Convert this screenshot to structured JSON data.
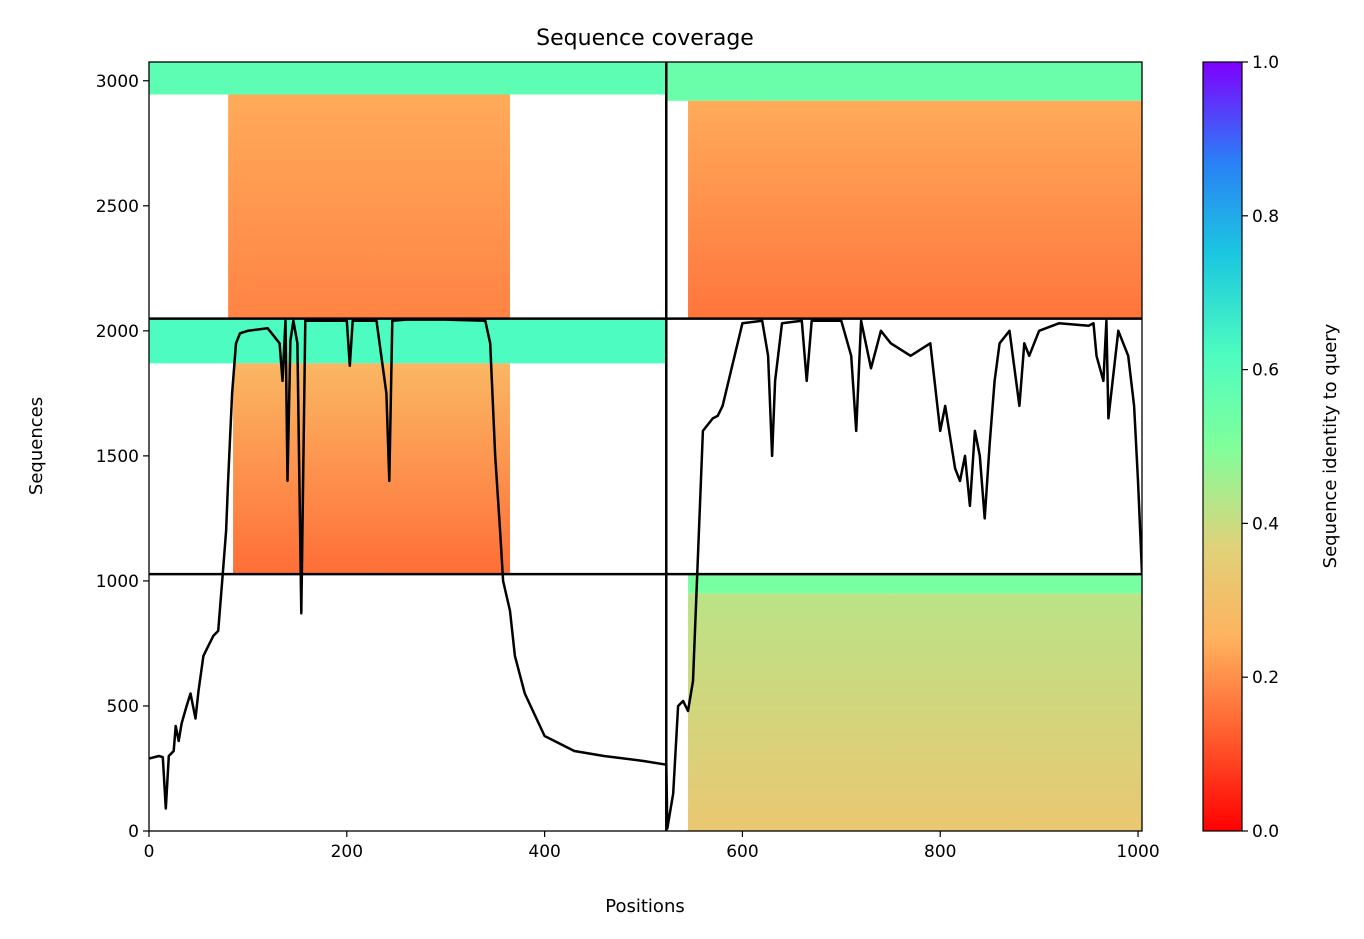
{
  "chart_data": {
    "type": "heatmap",
    "title": "Sequence coverage",
    "xlabel": "Positions",
    "ylabel": "Sequences",
    "xlim": [
      0,
      1004
    ],
    "ylim": [
      0,
      3075
    ],
    "xticks": [
      0,
      200,
      400,
      600,
      800,
      1000
    ],
    "yticks": [
      0,
      500,
      1000,
      1500,
      2000,
      2500,
      3000
    ],
    "colorbar": {
      "label": "Sequence identity to query",
      "range": [
        0.0,
        1.0
      ],
      "ticks": [
        "0.0",
        "0.2",
        "0.4",
        "0.6",
        "0.8",
        "1.0"
      ],
      "colormap": "rainbow_r"
    },
    "block_dividers": {
      "x": [
        523
      ],
      "y": [
        1027,
        2049
      ]
    },
    "blocks": [
      {
        "x": [
          0,
          523
        ],
        "y": [
          2049,
          3075
        ],
        "note": "top-left",
        "bands": [
          {
            "y": [
              2945,
              3075
            ],
            "x": [
              0,
              523
            ],
            "identity": 0.58
          },
          {
            "y": [
              2049,
              2945
            ],
            "x": [
              80,
              365
            ],
            "identity": [
              0.18,
              0.24
            ]
          }
        ]
      },
      {
        "x": [
          523,
          1004
        ],
        "y": [
          2049,
          3075
        ],
        "note": "top-right",
        "bands": [
          {
            "y": [
              2920,
              3075
            ],
            "x": [
              523,
              1004
            ],
            "identity": 0.55
          },
          {
            "y": [
              2049,
              2920
            ],
            "x": [
              545,
              1004
            ],
            "identity": [
              0.16,
              0.24
            ]
          }
        ]
      },
      {
        "x": [
          0,
          523
        ],
        "y": [
          1027,
          2049
        ],
        "note": "middle-left",
        "bands": [
          {
            "y": [
              1870,
              2049
            ],
            "x": [
              0,
              523
            ],
            "identity": 0.62
          },
          {
            "y": [
              1027,
              1870
            ],
            "x": [
              85,
              365
            ],
            "identity": [
              0.15,
              0.27
            ]
          }
        ]
      },
      {
        "x": [
          523,
          1004
        ],
        "y": [
          0,
          1027
        ],
        "note": "bottom-right",
        "bands": [
          {
            "y": [
              950,
              1027
            ],
            "x": [
              545,
              1004
            ],
            "identity": 0.52
          },
          {
            "y": [
              0,
              950
            ],
            "x": [
              545,
              1004
            ],
            "identity": [
              0.33,
              0.42
            ]
          }
        ]
      }
    ],
    "coverage_line": {
      "color": "#000000",
      "x": [
        0,
        10,
        14,
        17,
        20,
        25,
        27,
        30,
        33,
        38,
        42,
        47,
        50,
        55,
        60,
        65,
        70,
        75,
        78,
        80,
        84,
        88,
        92,
        100,
        120,
        132,
        135,
        138,
        140,
        143,
        146,
        150,
        154,
        158,
        165,
        200,
        203,
        206,
        230,
        240,
        243,
        246,
        260,
        300,
        340,
        345,
        350,
        355,
        358,
        365,
        370,
        380,
        400,
        430,
        460,
        500,
        523,
        524,
        530,
        535,
        540,
        545,
        550,
        560,
        570,
        575,
        580,
        600,
        620,
        626,
        630,
        633,
        640,
        660,
        665,
        670,
        700,
        710,
        715,
        720,
        730,
        740,
        750,
        770,
        790,
        800,
        805,
        815,
        820,
        825,
        830,
        835,
        840,
        845,
        850,
        855,
        860,
        870,
        880,
        885,
        890,
        900,
        920,
        950,
        955,
        958,
        965,
        968,
        970,
        980,
        990,
        996,
        1000,
        1004
      ],
      "y": [
        290,
        300,
        295,
        90,
        300,
        320,
        420,
        360,
        430,
        500,
        550,
        450,
        560,
        700,
        740,
        780,
        800,
        1050,
        1200,
        1400,
        1750,
        1950,
        1990,
        2000,
        2010,
        1950,
        1800,
        2040,
        1400,
        1960,
        2040,
        1950,
        870,
        2040,
        2040,
        2040,
        1860,
        2040,
        2040,
        1750,
        1400,
        2040,
        2045,
        2045,
        2040,
        1950,
        1500,
        1200,
        1000,
        880,
        700,
        550,
        380,
        320,
        300,
        280,
        265,
        10,
        150,
        500,
        520,
        480,
        600,
        1600,
        1650,
        1660,
        1700,
        2030,
        2040,
        1900,
        1500,
        1800,
        2030,
        2040,
        1800,
        2040,
        2040,
        1900,
        1600,
        2040,
        1850,
        2000,
        1950,
        1900,
        1950,
        1600,
        1700,
        1450,
        1400,
        1500,
        1300,
        1600,
        1500,
        1250,
        1550,
        1800,
        1950,
        2000,
        1700,
        1950,
        1900,
        2000,
        2030,
        2020,
        2030,
        1900,
        1800,
        2040,
        1650,
        2000,
        1900,
        1700,
        1400,
        1030
      ]
    }
  }
}
